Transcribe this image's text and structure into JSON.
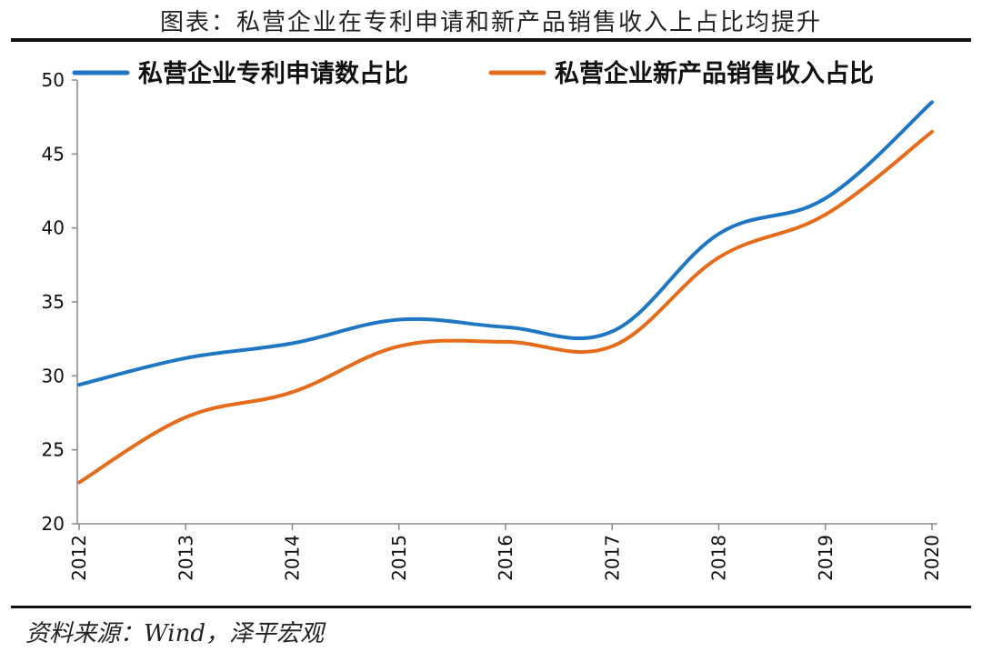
{
  "title": "图表：私营企业在专利申请和新产品销售收入上占比均提升",
  "source": "资料来源：Wind，泽平宏观",
  "chart_data": {
    "type": "line",
    "x": [
      "2012",
      "2013",
      "2014",
      "2015",
      "2016",
      "2017",
      "2018",
      "2019",
      "2020"
    ],
    "ylim": [
      20,
      50
    ],
    "yticks": [
      "20",
      "25",
      "30",
      "35",
      "40",
      "45",
      "50"
    ],
    "legend_position": "top",
    "series": [
      {
        "name": "私营企业专利申请数占比",
        "color": "#1f77c4",
        "values": [
          29.4,
          31.2,
          32.2,
          33.8,
          33.3,
          33.0,
          39.6,
          42.0,
          48.5
        ]
      },
      {
        "name": "私营企业新产品销售收入占比",
        "color": "#e66c1c",
        "values": [
          22.8,
          27.2,
          28.9,
          32.0,
          32.3,
          32.0,
          38.0,
          40.9,
          46.5
        ]
      }
    ]
  }
}
